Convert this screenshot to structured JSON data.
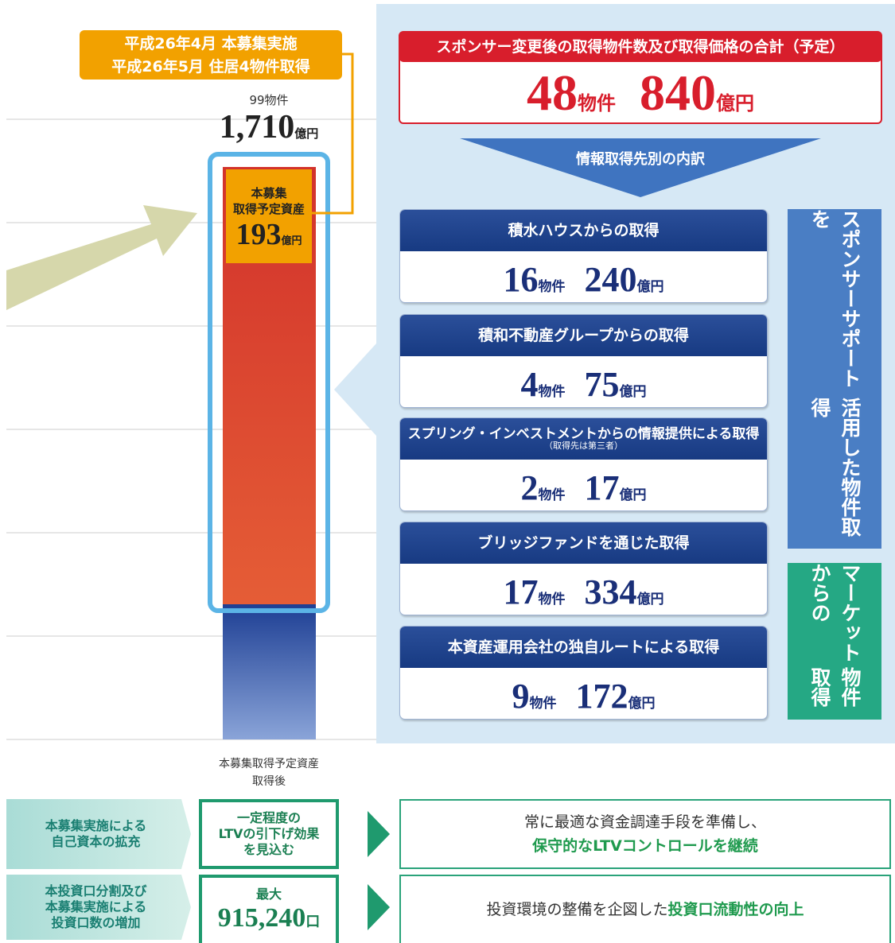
{
  "callout": {
    "lines": [
      "平成26年4月 本募集実施",
      "平成26年5月 住居4物件取得"
    ]
  },
  "bar_top": {
    "count": "99物件",
    "amount": "1,710",
    "unit": "億円"
  },
  "offering_box": {
    "lines": [
      "本募集",
      "取得予定資産"
    ],
    "amount": "193",
    "unit": "億円"
  },
  "bar_caption": [
    "本募集取得予定資産",
    "取得後"
  ],
  "summary": {
    "title": "スポンサー変更後の取得物件数及び取得価格の合計（予定）",
    "count": "48",
    "count_unit": "物件",
    "amount": "840",
    "amount_unit": "億円"
  },
  "breakdown_title": "情報取得先別の内訳",
  "units": {
    "count": "物件",
    "amount": "億円"
  },
  "cards": [
    {
      "title": "積水ハウスからの取得",
      "count": "16",
      "amount": "240"
    },
    {
      "title": "積和不動産グループからの取得",
      "count": "4",
      "amount": "75"
    },
    {
      "title": "スプリング・インベストメントからの情報提供による取得",
      "note": "（取得先は第三者）",
      "count": "2",
      "amount": "17"
    },
    {
      "title": "ブリッジファンドを通じた取得",
      "count": "17",
      "amount": "334"
    },
    {
      "title": "本資産運用会社の独自ルートによる取得",
      "count": "9",
      "amount": "172"
    }
  ],
  "side_labels": [
    [
      "スポンサーサポートを",
      "活用した物件取得"
    ],
    [
      "マーケットからの",
      "物件取得"
    ]
  ],
  "rows": [
    {
      "left": [
        "本募集実施による",
        "自己資本の拡充"
      ],
      "middle": [
        "一定程度の",
        "LTVの引下げ効果",
        "を見込む"
      ],
      "right": [
        "常に最適な資金調達手段を準備し、"
      ],
      "right_highlight": "保守的なLTVコントロールを継続"
    },
    {
      "left": [
        "本投資口分割及び",
        "本募集実施による",
        "投資口数の増加"
      ],
      "middle_label": "最大",
      "middle_value": "915,240",
      "middle_unit": "口",
      "right": [
        "投資環境の整備を企図した"
      ],
      "right_highlight": "投資口流動性の向上"
    }
  ]
}
